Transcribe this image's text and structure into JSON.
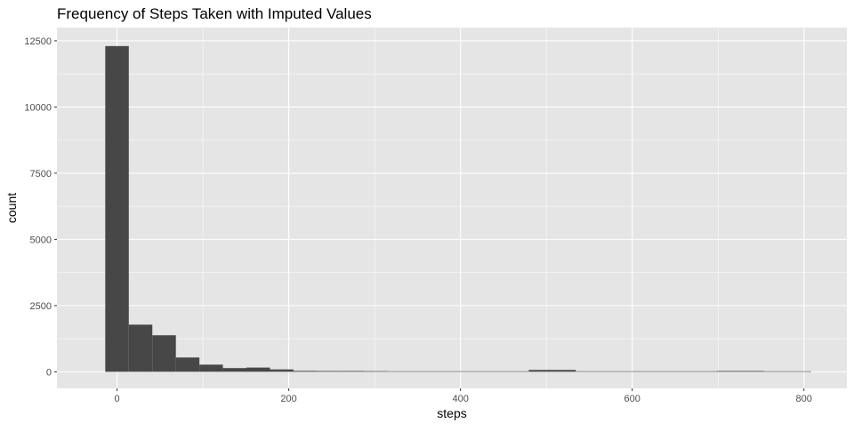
{
  "chart_data": {
    "type": "bar",
    "title": "Frequency of Steps Taken with Imputed Values",
    "xlabel": "steps",
    "ylabel": "count",
    "xlim": [
      -70,
      850
    ],
    "ylim": [
      -625,
      13000
    ],
    "x_ticks": [
      0,
      200,
      400,
      600,
      800
    ],
    "y_ticks": [
      0,
      2500,
      5000,
      7500,
      10000,
      12500
    ],
    "grid": true,
    "legend": "none",
    "bin_width": 27.4,
    "bins": [
      {
        "x_start": -13.7,
        "x_end": 13.7,
        "count": 12300
      },
      {
        "x_start": 13.7,
        "x_end": 41.1,
        "count": 1780
      },
      {
        "x_start": 41.1,
        "x_end": 68.5,
        "count": 1380
      },
      {
        "x_start": 68.5,
        "x_end": 95.9,
        "count": 540
      },
      {
        "x_start": 95.9,
        "x_end": 123.3,
        "count": 270
      },
      {
        "x_start": 123.3,
        "x_end": 150.7,
        "count": 140
      },
      {
        "x_start": 150.7,
        "x_end": 178.1,
        "count": 160
      },
      {
        "x_start": 178.1,
        "x_end": 205.5,
        "count": 90
      },
      {
        "x_start": 205.5,
        "x_end": 232.9,
        "count": 35
      },
      {
        "x_start": 232.9,
        "x_end": 260.3,
        "count": 30
      },
      {
        "x_start": 260.3,
        "x_end": 287.7,
        "count": 30
      },
      {
        "x_start": 287.7,
        "x_end": 315.1,
        "count": 25
      },
      {
        "x_start": 315.1,
        "x_end": 342.5,
        "count": 20
      },
      {
        "x_start": 342.5,
        "x_end": 369.9,
        "count": 20
      },
      {
        "x_start": 369.9,
        "x_end": 397.3,
        "count": 20
      },
      {
        "x_start": 397.3,
        "x_end": 424.7,
        "count": 15
      },
      {
        "x_start": 424.7,
        "x_end": 452.1,
        "count": 15
      },
      {
        "x_start": 452.1,
        "x_end": 479.5,
        "count": 20
      },
      {
        "x_start": 479.5,
        "x_end": 506.9,
        "count": 70
      },
      {
        "x_start": 506.9,
        "x_end": 534.3,
        "count": 70
      },
      {
        "x_start": 534.3,
        "x_end": 561.7,
        "count": 10
      },
      {
        "x_start": 561.7,
        "x_end": 589.1,
        "count": 10
      },
      {
        "x_start": 589.1,
        "x_end": 616.5,
        "count": 5
      },
      {
        "x_start": 616.5,
        "x_end": 643.9,
        "count": 5
      },
      {
        "x_start": 643.9,
        "x_end": 671.3,
        "count": 5
      },
      {
        "x_start": 671.3,
        "x_end": 698.7,
        "count": 5
      },
      {
        "x_start": 698.7,
        "x_end": 726.1,
        "count": 30
      },
      {
        "x_start": 726.1,
        "x_end": 753.5,
        "count": 30
      },
      {
        "x_start": 753.5,
        "x_end": 780.9,
        "count": 10
      },
      {
        "x_start": 780.9,
        "x_end": 808.3,
        "count": 5
      }
    ],
    "colors": {
      "bar": "#474747",
      "panel_background": "#e5e5e5",
      "gridline": "#ffffff",
      "tick_label": "#4d4d4d"
    }
  }
}
